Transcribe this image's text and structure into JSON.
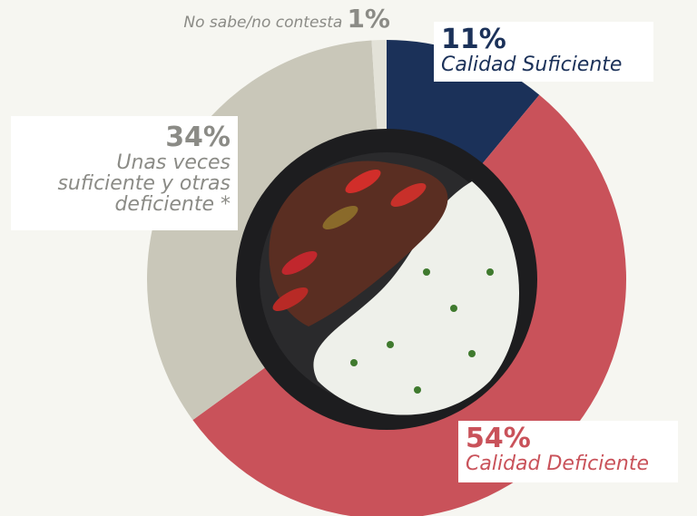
{
  "chart_data": {
    "type": "donut",
    "categories": [
      "Calidad Suficiente",
      "Calidad Deficiente",
      "Unas veces suficiente y otras deficiente *",
      "No sabe/no contesta"
    ],
    "values": [
      11,
      54,
      34,
      1
    ],
    "value_labels": [
      "11%",
      "54%",
      "34%",
      "1%"
    ],
    "colors": [
      "#1b3159",
      "#c9525a",
      "#c9c7b9",
      "#e3e2d8"
    ],
    "label_colors": [
      "#1b3159",
      "#c9525a",
      "#8b8b86",
      "#8b8b86"
    ]
  }
}
